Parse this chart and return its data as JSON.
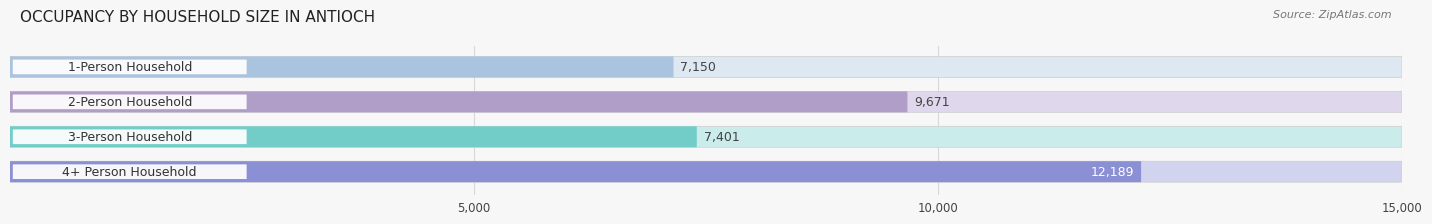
{
  "title": "OCCUPANCY BY HOUSEHOLD SIZE IN ANTIOCH",
  "source": "Source: ZipAtlas.com",
  "categories": [
    "1-Person Household",
    "2-Person Household",
    "3-Person Household",
    "4+ Person Household"
  ],
  "values": [
    7150,
    9671,
    7401,
    12189
  ],
  "bar_colors": [
    "#aac4e0",
    "#b09ec8",
    "#72cdc8",
    "#8b8fd4"
  ],
  "bar_bg_colors": [
    "#dde8f3",
    "#dfd8ec",
    "#caecea",
    "#d2d3ee"
  ],
  "label_values": [
    "7,150",
    "9,671",
    "7,401",
    "12,189"
  ],
  "label_inside": [
    false,
    false,
    false,
    true
  ],
  "xlim": [
    0,
    15000
  ],
  "xticks": [
    5000,
    10000,
    15000
  ],
  "xtick_labels": [
    "5,000",
    "10,000",
    "15,000"
  ],
  "title_fontsize": 11,
  "source_fontsize": 8,
  "label_fontsize": 9,
  "category_fontsize": 9,
  "background_color": "#f7f7f7",
  "grid_color": "#d8d8d8"
}
